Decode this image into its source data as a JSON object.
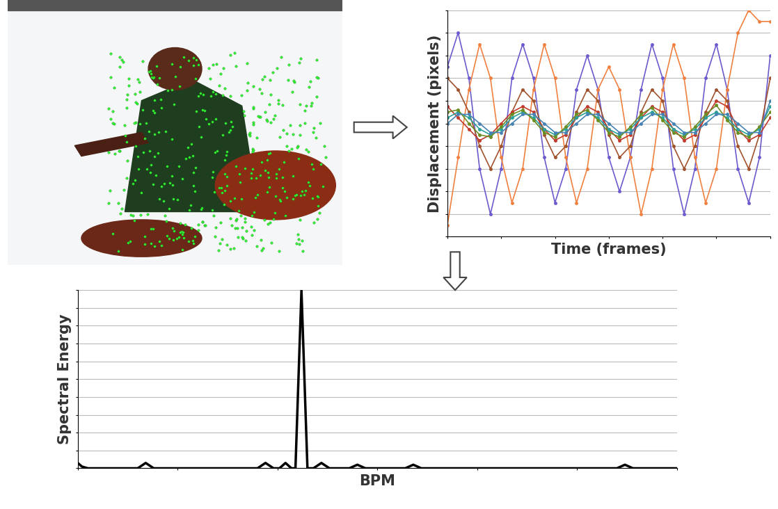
{
  "chart_data": [
    {
      "type": "line",
      "x_label": "Time (frames)",
      "y_label": "Displacement (pixels)",
      "x": [
        0,
        2,
        4,
        6,
        8,
        10,
        12,
        14,
        16,
        18,
        20,
        22,
        24,
        26,
        28,
        30,
        32,
        34,
        36,
        38,
        40,
        42,
        44,
        46,
        48,
        50,
        52,
        54,
        56,
        58,
        60
      ],
      "series": [
        {
          "color": "#6a5acd",
          "marker": "o",
          "values": [
            5,
            8,
            4,
            -4,
            -8,
            -4,
            4,
            7,
            4,
            -3,
            -7,
            -4,
            3,
            6,
            3,
            -3,
            -6,
            -3,
            3,
            7,
            4,
            -4,
            -8,
            -4,
            4,
            7,
            3,
            -4,
            -7,
            -3,
            6
          ]
        },
        {
          "color": "#f08040",
          "marker": "o",
          "values": [
            -9,
            -3,
            3,
            7,
            4,
            -3,
            -7,
            -4,
            3,
            7,
            4,
            -3,
            -7,
            -4,
            3,
            5,
            3,
            -3,
            -8,
            -4,
            3,
            7,
            4,
            -3,
            -7,
            -4,
            3,
            8,
            10,
            9,
            9
          ]
        },
        {
          "color": "#a0522d",
          "marker": "o",
          "values": [
            4,
            3,
            1,
            -2,
            -4,
            -2,
            1,
            3,
            2,
            -1,
            -3,
            -2,
            1,
            3,
            2,
            -1,
            -3,
            -2,
            1,
            3,
            2,
            -2,
            -4,
            -2,
            1,
            3,
            2,
            -2,
            -4,
            -1,
            4
          ]
        },
        {
          "color": "#c0392b",
          "marker": "o",
          "values": [
            1.5,
            0.5,
            -0.5,
            -1.5,
            -1,
            0,
            1,
            1.5,
            1,
            -0.5,
            -1.5,
            -1,
            0.5,
            1.5,
            1,
            -0.5,
            -1.5,
            -1,
            0.5,
            1.5,
            1,
            -0.5,
            -1.5,
            -1,
            0.5,
            2,
            1.5,
            -0.5,
            -1.5,
            -1,
            0.5
          ]
        },
        {
          "color": "#2aa198",
          "marker": "o",
          "values": [
            0.5,
            1,
            0.5,
            -0.5,
            -1,
            -0.5,
            0.5,
            1,
            0.5,
            -0.5,
            -1,
            -0.5,
            0.5,
            1,
            0.5,
            -0.5,
            -1,
            -0.5,
            0.5,
            1,
            0.5,
            -0.5,
            -1,
            -0.5,
            0.5,
            1,
            0.5,
            -0.5,
            -1,
            -0.5,
            1.5
          ]
        },
        {
          "color": "#6b8e23",
          "marker": "o",
          "values": [
            1,
            1.2,
            0,
            -1,
            -1.2,
            -0.3,
            0.8,
            1.2,
            0.3,
            -0.8,
            -1.2,
            -0.3,
            0.8,
            1.2,
            0.3,
            -0.8,
            -1.2,
            -0.3,
            0.8,
            1.4,
            0.3,
            -0.8,
            -1.2,
            -0.3,
            0.8,
            1.6,
            0.3,
            -0.8,
            -1.2,
            -0.3,
            1
          ]
        },
        {
          "color": "#4682b4",
          "marker": "o",
          "values": [
            0,
            0.8,
            0.8,
            0,
            -0.8,
            -0.8,
            0,
            0.8,
            0.8,
            0,
            -0.8,
            -0.8,
            0,
            0.8,
            0.8,
            0,
            -0.8,
            -0.8,
            0,
            0.8,
            0.8,
            0,
            -0.8,
            -0.8,
            0,
            0.8,
            0.8,
            0,
            -0.8,
            -0.8,
            2
          ]
        }
      ],
      "xlim": [
        0,
        60
      ],
      "xticks": [
        0,
        10,
        20,
        30,
        40,
        50,
        60
      ],
      "ylim": [
        -10,
        10
      ],
      "yticks": [
        -10,
        -8,
        -6,
        -4,
        -2,
        0,
        2,
        4,
        6,
        8,
        10
      ],
      "grid": true,
      "tick_labels": false
    },
    {
      "type": "line",
      "x_label": "BPM",
      "y_label": "Spectral Energy",
      "x": [
        0,
        2,
        5,
        30,
        34,
        38,
        90,
        94,
        98,
        101,
        104,
        107,
        109,
        112,
        115,
        118,
        122,
        126,
        136,
        140,
        144,
        164,
        168,
        172,
        270,
        274,
        278,
        300
      ],
      "series": [
        {
          "color": "#000000",
          "values": [
            0.03,
            0.01,
            0,
            0,
            0.03,
            0,
            0,
            0.03,
            0,
            0,
            0.03,
            0,
            0,
            1.0,
            0,
            0,
            0.03,
            0,
            0,
            0.02,
            0,
            0,
            0.02,
            0,
            0,
            0.02,
            0,
            0
          ]
        }
      ],
      "xlim": [
        0,
        300
      ],
      "xticks": [
        0,
        50,
        100,
        150,
        200,
        250,
        300
      ],
      "ylim": [
        0,
        1
      ],
      "yticks": [
        0,
        0.1,
        0.2,
        0.3,
        0.4,
        0.5,
        0.6,
        0.7,
        0.8,
        0.9,
        1
      ],
      "grid": true,
      "tick_labels": false
    }
  ]
}
